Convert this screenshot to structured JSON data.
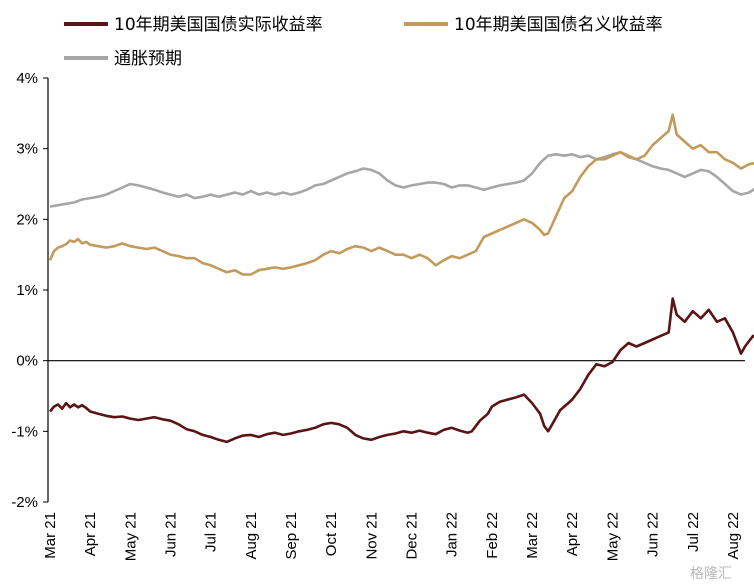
{
  "chart_data": {
    "type": "line",
    "title": "",
    "xlabel": "",
    "ylabel": "",
    "ylim": [
      -2,
      4
    ],
    "y_ticks": [
      {
        "v": 4,
        "label": "4%"
      },
      {
        "v": 3,
        "label": "3%"
      },
      {
        "v": 2,
        "label": "2%"
      },
      {
        "v": 1,
        "label": "1%"
      },
      {
        "v": 0,
        "label": "0%"
      },
      {
        "v": -1,
        "label": "-1%"
      },
      {
        "v": -2,
        "label": "-2%"
      }
    ],
    "x_ticks": [
      "Mar 21",
      "Apr 21",
      "May 21",
      "Jun 21",
      "Jul 21",
      "Aug 21",
      "Sep 21",
      "Oct 21",
      "Nov 21",
      "Dec 21",
      "Jan 22",
      "Feb 22",
      "Mar 22",
      "Apr 22",
      "May 22",
      "Jun 22",
      "Jul 22",
      "Aug 22"
    ],
    "legend_position": "top-left",
    "grid": false,
    "series": [
      {
        "name": "10年期美国国债实际收益率",
        "color": "#5a1414",
        "points": [
          [
            0,
            -0.72
          ],
          [
            0.1,
            -0.65
          ],
          [
            0.2,
            -0.62
          ],
          [
            0.3,
            -0.68
          ],
          [
            0.4,
            -0.6
          ],
          [
            0.5,
            -0.66
          ],
          [
            0.6,
            -0.62
          ],
          [
            0.7,
            -0.66
          ],
          [
            0.8,
            -0.63
          ],
          [
            0.9,
            -0.67
          ],
          [
            1.0,
            -0.72
          ],
          [
            1.2,
            -0.75
          ],
          [
            1.4,
            -0.78
          ],
          [
            1.6,
            -0.8
          ],
          [
            1.8,
            -0.79
          ],
          [
            2.0,
            -0.82
          ],
          [
            2.2,
            -0.84
          ],
          [
            2.4,
            -0.82
          ],
          [
            2.6,
            -0.8
          ],
          [
            2.8,
            -0.83
          ],
          [
            3.0,
            -0.85
          ],
          [
            3.2,
            -0.9
          ],
          [
            3.4,
            -0.97
          ],
          [
            3.6,
            -1.0
          ],
          [
            3.8,
            -1.05
          ],
          [
            4.0,
            -1.08
          ],
          [
            4.2,
            -1.12
          ],
          [
            4.4,
            -1.15
          ],
          [
            4.6,
            -1.1
          ],
          [
            4.8,
            -1.06
          ],
          [
            5.0,
            -1.05
          ],
          [
            5.2,
            -1.08
          ],
          [
            5.4,
            -1.04
          ],
          [
            5.6,
            -1.02
          ],
          [
            5.8,
            -1.05
          ],
          [
            6.0,
            -1.03
          ],
          [
            6.2,
            -1.0
          ],
          [
            6.4,
            -0.98
          ],
          [
            6.6,
            -0.95
          ],
          [
            6.8,
            -0.9
          ],
          [
            7.0,
            -0.88
          ],
          [
            7.2,
            -0.9
          ],
          [
            7.4,
            -0.95
          ],
          [
            7.6,
            -1.05
          ],
          [
            7.8,
            -1.1
          ],
          [
            8.0,
            -1.12
          ],
          [
            8.2,
            -1.08
          ],
          [
            8.4,
            -1.05
          ],
          [
            8.6,
            -1.03
          ],
          [
            8.8,
            -1.0
          ],
          [
            9.0,
            -1.02
          ],
          [
            9.2,
            -0.99
          ],
          [
            9.4,
            -1.02
          ],
          [
            9.6,
            -1.04
          ],
          [
            9.8,
            -0.98
          ],
          [
            10.0,
            -0.95
          ],
          [
            10.2,
            -0.99
          ],
          [
            10.4,
            -1.02
          ],
          [
            10.5,
            -1.0
          ],
          [
            10.7,
            -0.85
          ],
          [
            10.9,
            -0.75
          ],
          [
            11.0,
            -0.65
          ],
          [
            11.2,
            -0.58
          ],
          [
            11.4,
            -0.55
          ],
          [
            11.6,
            -0.52
          ],
          [
            11.8,
            -0.48
          ],
          [
            12.0,
            -0.6
          ],
          [
            12.2,
            -0.75
          ],
          [
            12.3,
            -0.92
          ],
          [
            12.4,
            -1.0
          ],
          [
            12.5,
            -0.9
          ],
          [
            12.7,
            -0.7
          ],
          [
            12.9,
            -0.6
          ],
          [
            13.0,
            -0.55
          ],
          [
            13.2,
            -0.4
          ],
          [
            13.4,
            -0.2
          ],
          [
            13.6,
            -0.05
          ],
          [
            13.8,
            -0.08
          ],
          [
            14.0,
            -0.02
          ],
          [
            14.2,
            0.15
          ],
          [
            14.4,
            0.25
          ],
          [
            14.6,
            0.2
          ],
          [
            14.8,
            0.25
          ],
          [
            15.0,
            0.3
          ],
          [
            15.2,
            0.35
          ],
          [
            15.4,
            0.4
          ],
          [
            15.5,
            0.88
          ],
          [
            15.6,
            0.65
          ],
          [
            15.8,
            0.55
          ],
          [
            16.0,
            0.7
          ],
          [
            16.2,
            0.6
          ],
          [
            16.4,
            0.72
          ],
          [
            16.6,
            0.55
          ],
          [
            16.8,
            0.6
          ],
          [
            17.0,
            0.4
          ],
          [
            17.2,
            0.1
          ],
          [
            17.3,
            0.2
          ],
          [
            17.5,
            0.35
          ],
          [
            17.7,
            0.3
          ],
          [
            17.9,
            0.4
          ],
          [
            18.0,
            0.42
          ]
        ]
      },
      {
        "name": "10年期美国国债名义收益率",
        "color": "#c29a5c",
        "points": [
          [
            0,
            1.42
          ],
          [
            0.1,
            1.55
          ],
          [
            0.2,
            1.6
          ],
          [
            0.3,
            1.62
          ],
          [
            0.4,
            1.65
          ],
          [
            0.5,
            1.7
          ],
          [
            0.6,
            1.68
          ],
          [
            0.7,
            1.72
          ],
          [
            0.8,
            1.66
          ],
          [
            0.9,
            1.68
          ],
          [
            1.0,
            1.64
          ],
          [
            1.2,
            1.62
          ],
          [
            1.4,
            1.6
          ],
          [
            1.6,
            1.62
          ],
          [
            1.8,
            1.66
          ],
          [
            2.0,
            1.62
          ],
          [
            2.2,
            1.6
          ],
          [
            2.4,
            1.58
          ],
          [
            2.6,
            1.6
          ],
          [
            2.8,
            1.55
          ],
          [
            3.0,
            1.5
          ],
          [
            3.2,
            1.48
          ],
          [
            3.4,
            1.45
          ],
          [
            3.6,
            1.45
          ],
          [
            3.8,
            1.38
          ],
          [
            4.0,
            1.35
          ],
          [
            4.2,
            1.3
          ],
          [
            4.4,
            1.25
          ],
          [
            4.6,
            1.28
          ],
          [
            4.8,
            1.22
          ],
          [
            5.0,
            1.22
          ],
          [
            5.2,
            1.28
          ],
          [
            5.4,
            1.3
          ],
          [
            5.6,
            1.32
          ],
          [
            5.8,
            1.3
          ],
          [
            6.0,
            1.32
          ],
          [
            6.2,
            1.35
          ],
          [
            6.4,
            1.38
          ],
          [
            6.6,
            1.42
          ],
          [
            6.8,
            1.5
          ],
          [
            7.0,
            1.55
          ],
          [
            7.2,
            1.52
          ],
          [
            7.4,
            1.58
          ],
          [
            7.6,
            1.62
          ],
          [
            7.8,
            1.6
          ],
          [
            8.0,
            1.55
          ],
          [
            8.2,
            1.6
          ],
          [
            8.4,
            1.55
          ],
          [
            8.6,
            1.5
          ],
          [
            8.8,
            1.5
          ],
          [
            9.0,
            1.45
          ],
          [
            9.2,
            1.5
          ],
          [
            9.4,
            1.45
          ],
          [
            9.6,
            1.35
          ],
          [
            9.8,
            1.42
          ],
          [
            10.0,
            1.48
          ],
          [
            10.2,
            1.45
          ],
          [
            10.4,
            1.5
          ],
          [
            10.6,
            1.55
          ],
          [
            10.8,
            1.75
          ],
          [
            11.0,
            1.8
          ],
          [
            11.2,
            1.85
          ],
          [
            11.4,
            1.9
          ],
          [
            11.6,
            1.95
          ],
          [
            11.8,
            2.0
          ],
          [
            12.0,
            1.95
          ],
          [
            12.2,
            1.85
          ],
          [
            12.3,
            1.78
          ],
          [
            12.4,
            1.8
          ],
          [
            12.6,
            2.05
          ],
          [
            12.8,
            2.3
          ],
          [
            13.0,
            2.4
          ],
          [
            13.2,
            2.6
          ],
          [
            13.4,
            2.75
          ],
          [
            13.6,
            2.85
          ],
          [
            13.8,
            2.85
          ],
          [
            14.0,
            2.9
          ],
          [
            14.2,
            2.95
          ],
          [
            14.4,
            2.88
          ],
          [
            14.6,
            2.85
          ],
          [
            14.8,
            2.9
          ],
          [
            15.0,
            3.05
          ],
          [
            15.2,
            3.15
          ],
          [
            15.4,
            3.25
          ],
          [
            15.5,
            3.48
          ],
          [
            15.6,
            3.2
          ],
          [
            15.8,
            3.1
          ],
          [
            16.0,
            3.0
          ],
          [
            16.2,
            3.05
          ],
          [
            16.4,
            2.95
          ],
          [
            16.6,
            2.95
          ],
          [
            16.8,
            2.85
          ],
          [
            17.0,
            2.8
          ],
          [
            17.2,
            2.72
          ],
          [
            17.4,
            2.78
          ],
          [
            17.6,
            2.8
          ],
          [
            17.8,
            2.88
          ],
          [
            18.0,
            2.95
          ]
        ]
      },
      {
        "name": "通胀预期",
        "color": "#a6a6a6",
        "points": [
          [
            0,
            2.18
          ],
          [
            0.2,
            2.2
          ],
          [
            0.4,
            2.22
          ],
          [
            0.6,
            2.24
          ],
          [
            0.8,
            2.28
          ],
          [
            1.0,
            2.3
          ],
          [
            1.2,
            2.32
          ],
          [
            1.4,
            2.35
          ],
          [
            1.6,
            2.4
          ],
          [
            1.8,
            2.45
          ],
          [
            2.0,
            2.5
          ],
          [
            2.2,
            2.48
          ],
          [
            2.4,
            2.45
          ],
          [
            2.6,
            2.42
          ],
          [
            2.8,
            2.38
          ],
          [
            3.0,
            2.35
          ],
          [
            3.2,
            2.32
          ],
          [
            3.4,
            2.35
          ],
          [
            3.6,
            2.3
          ],
          [
            3.8,
            2.32
          ],
          [
            4.0,
            2.35
          ],
          [
            4.2,
            2.32
          ],
          [
            4.4,
            2.35
          ],
          [
            4.6,
            2.38
          ],
          [
            4.8,
            2.35
          ],
          [
            5.0,
            2.4
          ],
          [
            5.2,
            2.35
          ],
          [
            5.4,
            2.38
          ],
          [
            5.6,
            2.35
          ],
          [
            5.8,
            2.38
          ],
          [
            6.0,
            2.35
          ],
          [
            6.2,
            2.38
          ],
          [
            6.4,
            2.42
          ],
          [
            6.6,
            2.48
          ],
          [
            6.8,
            2.5
          ],
          [
            7.0,
            2.55
          ],
          [
            7.2,
            2.6
          ],
          [
            7.4,
            2.65
          ],
          [
            7.6,
            2.68
          ],
          [
            7.8,
            2.72
          ],
          [
            8.0,
            2.7
          ],
          [
            8.2,
            2.65
          ],
          [
            8.4,
            2.55
          ],
          [
            8.6,
            2.48
          ],
          [
            8.8,
            2.45
          ],
          [
            9.0,
            2.48
          ],
          [
            9.2,
            2.5
          ],
          [
            9.4,
            2.52
          ],
          [
            9.6,
            2.52
          ],
          [
            9.8,
            2.5
          ],
          [
            10.0,
            2.45
          ],
          [
            10.2,
            2.48
          ],
          [
            10.4,
            2.48
          ],
          [
            10.6,
            2.45
          ],
          [
            10.8,
            2.42
          ],
          [
            11.0,
            2.45
          ],
          [
            11.2,
            2.48
          ],
          [
            11.4,
            2.5
          ],
          [
            11.6,
            2.52
          ],
          [
            11.8,
            2.55
          ],
          [
            12.0,
            2.65
          ],
          [
            12.2,
            2.8
          ],
          [
            12.4,
            2.9
          ],
          [
            12.6,
            2.92
          ],
          [
            12.8,
            2.9
          ],
          [
            13.0,
            2.92
          ],
          [
            13.2,
            2.88
          ],
          [
            13.4,
            2.9
          ],
          [
            13.6,
            2.85
          ],
          [
            13.8,
            2.88
          ],
          [
            14.0,
            2.92
          ],
          [
            14.2,
            2.95
          ],
          [
            14.4,
            2.9
          ],
          [
            14.6,
            2.85
          ],
          [
            14.8,
            2.8
          ],
          [
            15.0,
            2.75
          ],
          [
            15.2,
            2.72
          ],
          [
            15.4,
            2.7
          ],
          [
            15.6,
            2.65
          ],
          [
            15.8,
            2.6
          ],
          [
            16.0,
            2.65
          ],
          [
            16.2,
            2.7
          ],
          [
            16.4,
            2.68
          ],
          [
            16.6,
            2.6
          ],
          [
            16.8,
            2.5
          ],
          [
            17.0,
            2.4
          ],
          [
            17.2,
            2.35
          ],
          [
            17.4,
            2.38
          ],
          [
            17.6,
            2.45
          ],
          [
            17.8,
            2.48
          ],
          [
            18.0,
            2.5
          ]
        ]
      }
    ]
  },
  "watermark": "格隆汇"
}
